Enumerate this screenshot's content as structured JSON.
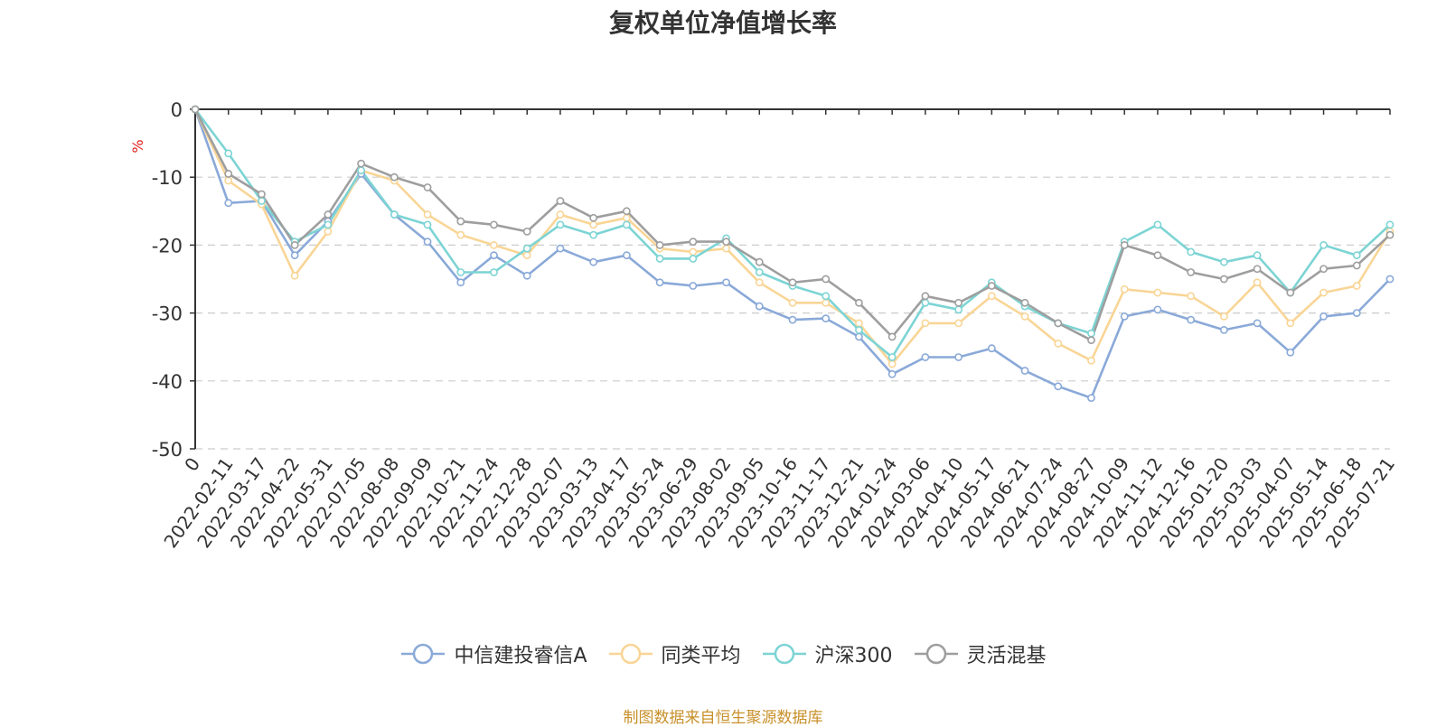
{
  "chart_data": {
    "type": "line",
    "title": "复权单位净值增长率",
    "ylabel": "%",
    "ylim": [
      -50,
      0
    ],
    "yticks": [
      0,
      -10,
      -20,
      -30,
      -40,
      -50
    ],
    "grid": true,
    "legend_position": "bottom",
    "x_tick_labels": [
      "0",
      "2022-02-11",
      "2022-03-17",
      "2022-04-22",
      "2022-05-31",
      "2022-07-05",
      "2022-08-08",
      "2022-09-09",
      "2022-10-21",
      "2022-11-24",
      "2022-12-28",
      "2023-02-07",
      "2023-03-13",
      "2023-04-17",
      "2023-05-24",
      "2023-06-29",
      "2023-08-02",
      "2023-09-05",
      "2023-10-16",
      "2023-11-17",
      "2023-12-21",
      "2024-01-24",
      "2024-03-06",
      "2024-04-10",
      "2024-05-17",
      "2024-06-21",
      "2024-07-24",
      "2024-08-27",
      "2024-10-09",
      "2024-11-12",
      "2024-12-16",
      "2025-01-20",
      "2025-03-03",
      "2025-04-07",
      "2025-05-14",
      "2025-06-18",
      "2025-07-21"
    ],
    "series": [
      {
        "name": "中信建投睿信A",
        "color": "#8aa9d8",
        "values": [
          0,
          -13.8,
          -13.5,
          -21.5,
          -16.5,
          -9.5,
          -15.5,
          -19.5,
          -25.5,
          -21.5,
          -24.5,
          -20.5,
          -22.5,
          -21.5,
          -25.5,
          -26.0,
          -25.5,
          -29.0,
          -31.0,
          -30.8,
          -33.5,
          -39.0,
          -36.5,
          -36.5,
          -35.2,
          -38.5,
          -40.8,
          -42.5,
          -30.5,
          -29.5,
          -31.0,
          -32.5,
          -31.5,
          -35.8,
          -30.5,
          -30.0,
          -25.0
        ]
      },
      {
        "name": "同类平均",
        "color": "#f9d596",
        "values": [
          0,
          -10.5,
          -14.0,
          -24.5,
          -18.0,
          -9.0,
          -10.5,
          -15.5,
          -18.5,
          -20.0,
          -21.5,
          -15.5,
          -17.0,
          -16.0,
          -20.5,
          -21.0,
          -20.5,
          -25.5,
          -28.5,
          -28.5,
          -31.5,
          -37.5,
          -31.5,
          -31.5,
          -27.5,
          -30.5,
          -34.5,
          -37.0,
          -26.5,
          -27.0,
          -27.5,
          -30.5,
          -25.5,
          -31.5,
          -27.0,
          -26.0,
          -18.0
        ]
      },
      {
        "name": "沪深300",
        "color": "#7dd4d4",
        "values": [
          0,
          -6.5,
          -13.5,
          -19.5,
          -17.0,
          -9.0,
          -15.5,
          -17.0,
          -24.0,
          -24.0,
          -20.5,
          -17.0,
          -18.5,
          -17.0,
          -22.0,
          -22.0,
          -19.0,
          -24.0,
          -26.0,
          -27.5,
          -32.5,
          -36.5,
          -28.5,
          -29.5,
          -25.5,
          -29.0,
          -31.5,
          -33.0,
          -19.5,
          -17.0,
          -21.0,
          -22.5,
          -21.5,
          -27.0,
          -20.0,
          -21.5,
          -17.0
        ]
      },
      {
        "name": "灵活混基",
        "color": "#9e9e9e",
        "values": [
          0,
          -9.5,
          -12.5,
          -20.0,
          -15.5,
          -8.0,
          -10.0,
          -11.5,
          -16.5,
          -17.0,
          -18.0,
          -13.5,
          -16.0,
          -15.0,
          -20.0,
          -19.5,
          -19.5,
          -22.5,
          -25.5,
          -25.0,
          -28.5,
          -33.5,
          -27.5,
          -28.5,
          -26.0,
          -28.5,
          -31.5,
          -34.0,
          -20.0,
          -21.5,
          -24.0,
          -25.0,
          -23.5,
          -27.0,
          -23.5,
          -23.0,
          -18.5
        ]
      }
    ],
    "source_note": "制图数据来自恒生聚源数据库"
  }
}
